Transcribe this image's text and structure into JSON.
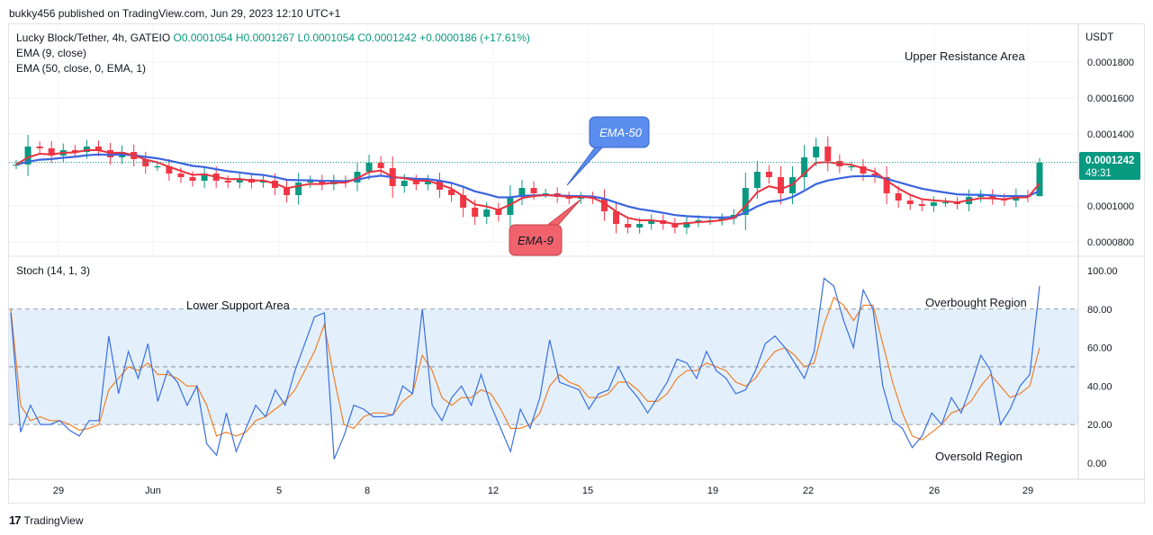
{
  "header": {
    "publisher": "bukky456 published on TradingView.com, Jun 29, 2023 12:10 UTC+1"
  },
  "legend": {
    "symbol": "Lucky Block/Tether, 4h, GATEIO",
    "ohlc": "O0.0001054  H0.0001267  L0.0001054  C0.0001242  +0.0000186 (+17.61%)",
    "ema9": "EMA (9, close)",
    "ema50": "EMA (50, close, 0, EMA, 1)"
  },
  "currency": "USDT",
  "price_box": {
    "price": "0.0001242",
    "timer": "49:31"
  },
  "stoch_label": "Stoch (14, 1, 3)",
  "annotations": {
    "upper_resistance": "Upper Resistance Area",
    "lower_support": "Lower Support Area",
    "overbought": "Overbought Region",
    "oversold": "Oversold Region",
    "ema50_callout": "EMA-50",
    "ema9_callout": "EMA-9"
  },
  "logo": "TradingView",
  "colors": {
    "ema9": "#e8323f",
    "ema50": "#3a64e0",
    "up_candle": "#089981",
    "down_candle": "#f23645",
    "stoch_k": "#3a6fe0",
    "stoch_d": "#f07f27",
    "stoch_band": "#e3f0fb",
    "callout_blue": "#5b8def",
    "callout_red": "#f0636c"
  },
  "chart_data": [
    {
      "type": "candlestick",
      "title": "Lucky Block/Tether, 4h, GATEIO",
      "x_tick_labels": [
        "29",
        "Jun",
        "5",
        "8",
        "12",
        "15",
        "19",
        "22",
        "26",
        "29"
      ],
      "y_tick_labels": [
        "0.0001800",
        "0.0001600",
        "0.0001400",
        "0.0001000",
        "0.0000800"
      ],
      "y_range": [
        7.25e-05,
        0.0002005
      ],
      "last": {
        "open": 0.0001054,
        "high": 0.0001267,
        "low": 0.0001054,
        "close": 0.0001242,
        "change": 1.86e-05,
        "change_pct": 17.61
      },
      "close_approx": [
        0.000123,
        0.000133,
        0.000132,
        0.000128,
        0.000131,
        0.00013,
        0.000133,
        0.000131,
        0.000127,
        0.00013,
        0.000126,
        0.000122,
        0.000122,
        0.000118,
        0.000116,
        0.000114,
        0.000118,
        0.000114,
        0.000113,
        0.000115,
        0.000113,
        0.000114,
        0.00011,
        0.000106,
        0.000113,
        0.000114,
        0.000112,
        0.000114,
        0.000113,
        0.000119,
        0.000124,
        0.000121,
        0.000111,
        0.000114,
        0.000112,
        0.000114,
        0.000109,
        0.000106,
        9.9e-05,
        9.4e-05,
        9.8e-05,
        9.5e-05,
        0.000105,
        0.00011,
        0.000107,
        0.000107,
        0.000105,
        0.000104,
        0.000105,
        0.000104,
        9.7e-05,
        9e-05,
        8.8e-05,
        9e-05,
        9.2e-05,
        9e-05,
        8.8e-05,
        9.1e-05,
        9.2e-05,
        9.2e-05,
        9.3e-05,
        9.5e-05,
        0.00011,
        0.000119,
        0.000116,
        0.000107,
        0.000116,
        0.000127,
        0.000133,
        0.000125,
        0.000122,
        0.000122,
        0.000118,
        0.000116,
        0.000107,
        0.000103,
        0.000101,
        0.0001,
        0.000102,
        0.000102,
        0.000101,
        0.000105,
        0.000106,
        0.000104,
        0.000103,
        0.000106,
        0.000105,
        0.000124
      ],
      "series": [
        {
          "name": "EMA (9, close)"
        },
        {
          "name": "EMA (50, close, 0, EMA, 1)"
        }
      ]
    },
    {
      "type": "line",
      "title": "Stoch (14, 1, 3)",
      "y_tick_labels": [
        "100.00",
        "80.00",
        "60.00",
        "40.00",
        "20.00",
        "0.00"
      ],
      "y_range": [
        -8,
        107
      ],
      "levels": [
        80,
        50,
        20
      ],
      "series": [
        {
          "values": [
            78,
            16,
            30,
            20,
            20,
            22,
            17,
            14,
            22,
            22,
            66,
            36,
            58,
            44,
            62,
            32,
            48,
            42,
            30,
            40,
            10,
            4,
            26,
            6,
            18,
            30,
            24,
            38,
            30,
            48,
            62,
            76,
            78,
            2,
            14,
            30,
            28,
            24,
            24,
            25,
            40,
            36,
            80,
            30,
            22,
            34,
            40,
            30,
            46,
            30,
            18,
            6,
            28,
            18,
            34,
            64,
            42,
            40,
            38,
            28,
            36,
            38,
            50,
            40,
            34,
            26,
            34,
            42,
            54,
            52,
            44,
            58,
            48,
            44,
            36,
            38,
            48,
            62,
            66,
            60,
            52,
            44,
            58,
            96,
            92,
            74,
            60,
            90,
            80,
            40,
            22,
            18,
            8,
            14,
            26,
            20,
            34,
            26,
            40,
            56,
            48,
            20,
            28,
            40,
            46,
            92
          ]
        },
        {
          "values": [
            80,
            30,
            22,
            24,
            22,
            22,
            20,
            17,
            18,
            20,
            38,
            44,
            50,
            48,
            52,
            46,
            46,
            44,
            40,
            40,
            30,
            14,
            16,
            14,
            16,
            22,
            24,
            28,
            32,
            38,
            48,
            58,
            72,
            44,
            20,
            18,
            24,
            26,
            26,
            25,
            32,
            36,
            56,
            48,
            34,
            30,
            34,
            34,
            38,
            36,
            28,
            18,
            18,
            20,
            26,
            40,
            46,
            42,
            40,
            34,
            34,
            36,
            42,
            42,
            38,
            32,
            32,
            36,
            44,
            48,
            48,
            52,
            50,
            48,
            42,
            40,
            44,
            52,
            58,
            60,
            56,
            50,
            52,
            72,
            86,
            82,
            74,
            82,
            82,
            62,
            42,
            26,
            14,
            12,
            16,
            20,
            26,
            28,
            32,
            40,
            46,
            40,
            34,
            36,
            40,
            60
          ]
        }
      ]
    }
  ]
}
